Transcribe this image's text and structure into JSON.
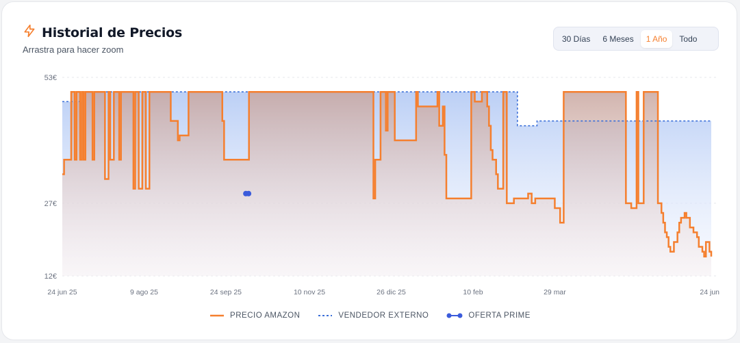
{
  "header": {
    "title": "Historial de Precios",
    "subtitle": "Arrastra para hacer zoom",
    "icon": "lightning-icon"
  },
  "ranges": [
    {
      "label": "30 Días",
      "active": false
    },
    {
      "label": "6 Meses",
      "active": false
    },
    {
      "label": "1 Año",
      "active": true
    },
    {
      "label": "Todo",
      "active": false
    }
  ],
  "colors": {
    "amazon": "#f57f2e",
    "third_party": "#3b6fd8",
    "prime": "#3b5bdb",
    "accent": "#f57f2e"
  },
  "chart_data": {
    "type": "line",
    "y_ticks": [
      {
        "value": 53,
        "label": "53€"
      },
      {
        "value": 27,
        "label": "27€"
      },
      {
        "value": 12,
        "label": "12€"
      }
    ],
    "ylim": [
      12,
      53
    ],
    "x_ticks": [
      {
        "day": 0,
        "label": "24 jun 25"
      },
      {
        "day": 46,
        "label": "9 ago 25"
      },
      {
        "day": 92,
        "label": "24 sep 25"
      },
      {
        "day": 139,
        "label": "10 nov 25"
      },
      {
        "day": 185,
        "label": "26 dic 25"
      },
      {
        "day": 231,
        "label": "10 feb"
      },
      {
        "day": 277,
        "label": "29 mar"
      },
      {
        "day": 365,
        "label": "24 jun"
      }
    ],
    "xlim": [
      0,
      365
    ],
    "series": [
      {
        "name": "PRECIO AMAZON",
        "style": "solid",
        "points": [
          [
            0,
            33
          ],
          [
            1,
            36
          ],
          [
            4,
            36
          ],
          [
            5,
            50
          ],
          [
            6,
            50
          ],
          [
            7,
            36
          ],
          [
            8,
            50
          ],
          [
            9,
            50
          ],
          [
            10,
            36
          ],
          [
            11,
            50
          ],
          [
            12,
            36
          ],
          [
            13,
            50
          ],
          [
            16,
            50
          ],
          [
            17,
            36
          ],
          [
            18,
            50
          ],
          [
            21,
            50
          ],
          [
            22,
            50
          ],
          [
            23,
            50
          ],
          [
            24,
            32
          ],
          [
            25,
            32
          ],
          [
            26,
            50
          ],
          [
            27,
            36
          ],
          [
            28,
            36
          ],
          [
            29,
            50
          ],
          [
            31,
            50
          ],
          [
            32,
            36
          ],
          [
            33,
            50
          ],
          [
            39,
            50
          ],
          [
            40,
            30
          ],
          [
            41,
            50
          ],
          [
            42,
            50
          ],
          [
            43,
            30
          ],
          [
            44,
            30
          ],
          [
            45,
            50
          ],
          [
            46,
            50
          ],
          [
            47,
            30
          ],
          [
            48,
            30
          ],
          [
            49,
            50
          ],
          [
            60,
            50
          ],
          [
            61,
            44
          ],
          [
            63,
            44
          ],
          [
            65,
            40
          ],
          [
            66,
            41
          ],
          [
            70,
            41
          ],
          [
            71,
            50
          ],
          [
            80,
            50
          ],
          [
            81,
            50
          ],
          [
            82,
            50
          ],
          [
            89,
            50
          ],
          [
            90,
            44
          ],
          [
            91,
            36
          ],
          [
            104,
            36
          ],
          [
            105,
            50
          ],
          [
            109,
            50
          ],
          [
            110,
            50
          ],
          [
            113,
            50
          ],
          [
            116,
            50
          ],
          [
            117,
            50
          ],
          [
            127,
            50
          ],
          [
            128,
            50
          ],
          [
            130,
            50
          ],
          [
            135,
            50
          ],
          [
            136,
            50
          ],
          [
            137,
            50
          ],
          [
            138,
            50
          ],
          [
            139,
            50
          ],
          [
            148,
            50
          ],
          [
            151,
            50
          ],
          [
            152,
            50
          ],
          [
            159,
            50
          ],
          [
            169,
            50
          ],
          [
            174,
            50
          ],
          [
            175,
            28
          ],
          [
            176,
            36
          ],
          [
            177,
            36
          ],
          [
            179,
            50
          ],
          [
            181,
            50
          ],
          [
            182,
            42
          ],
          [
            183,
            50
          ],
          [
            185,
            50
          ],
          [
            187,
            40
          ],
          [
            188,
            40
          ],
          [
            199,
            50
          ],
          [
            200,
            47
          ],
          [
            208,
            47
          ],
          [
            211,
            50
          ],
          [
            212,
            43
          ],
          [
            213,
            43
          ],
          [
            214,
            47
          ],
          [
            215,
            37
          ],
          [
            216,
            28
          ],
          [
            218,
            28
          ],
          [
            229,
            28
          ],
          [
            230,
            50
          ],
          [
            232,
            48
          ],
          [
            233,
            48
          ],
          [
            236,
            50
          ],
          [
            238,
            50
          ],
          [
            239,
            47
          ],
          [
            240,
            43
          ],
          [
            241,
            38
          ],
          [
            242,
            36
          ],
          [
            244,
            33
          ],
          [
            245,
            30
          ],
          [
            246,
            30
          ],
          [
            248,
            50
          ],
          [
            250,
            27
          ],
          [
            254,
            28
          ],
          [
            256,
            28
          ],
          [
            262,
            29
          ],
          [
            264,
            27
          ],
          [
            266,
            28
          ],
          [
            276,
            28
          ],
          [
            277,
            26
          ],
          [
            278,
            26
          ],
          [
            280,
            23
          ],
          [
            281,
            23
          ],
          [
            282,
            50
          ],
          [
            284,
            50
          ],
          [
            286,
            50
          ],
          [
            289,
            50
          ],
          [
            291,
            50
          ],
          [
            292,
            50
          ],
          [
            297,
            50
          ],
          [
            304,
            50
          ],
          [
            305,
            50
          ],
          [
            306,
            50
          ],
          [
            307,
            50
          ],
          [
            308,
            50
          ],
          [
            309,
            50
          ],
          [
            310,
            50
          ],
          [
            311,
            50
          ],
          [
            312,
            50
          ],
          [
            313,
            50
          ],
          [
            314,
            50
          ],
          [
            316,
            50
          ],
          [
            317,
            27
          ],
          [
            318,
            27
          ],
          [
            320,
            26
          ],
          [
            321,
            26
          ],
          [
            322,
            26
          ],
          [
            323,
            50
          ],
          [
            324,
            27
          ],
          [
            326,
            27
          ],
          [
            327,
            50
          ],
          [
            328,
            50
          ],
          [
            329,
            50
          ],
          [
            331,
            50
          ],
          [
            332,
            50
          ],
          [
            334,
            50
          ],
          [
            335,
            27
          ],
          [
            336,
            27
          ],
          [
            337,
            25
          ],
          [
            338,
            23
          ],
          [
            339,
            21
          ],
          [
            340,
            20
          ],
          [
            341,
            18
          ],
          [
            342,
            17
          ],
          [
            343,
            17
          ],
          [
            344,
            19
          ],
          [
            345,
            19
          ],
          [
            346,
            21
          ],
          [
            347,
            23
          ],
          [
            348,
            24
          ],
          [
            349,
            24
          ],
          [
            350,
            25
          ],
          [
            351,
            24
          ],
          [
            353,
            22
          ],
          [
            355,
            21
          ],
          [
            357,
            20
          ],
          [
            358,
            18
          ],
          [
            360,
            17
          ],
          [
            361,
            16
          ],
          [
            362,
            19
          ],
          [
            363,
            19
          ],
          [
            364,
            17
          ],
          [
            365,
            16
          ]
        ],
        "breaks": [
          28,
          50,
          102,
          190,
          227,
          282
        ]
      },
      {
        "name": "VENDEDOR EXTERNO",
        "style": "dashed",
        "points": [
          [
            0,
            48
          ],
          [
            10,
            48
          ],
          [
            12,
            50
          ],
          [
            255,
            50
          ],
          [
            256,
            43
          ],
          [
            265,
            43
          ],
          [
            267,
            44
          ],
          [
            365,
            44
          ]
        ]
      },
      {
        "name": "OFERTA PRIME",
        "style": "markers",
        "points": [
          [
            104,
            29
          ]
        ]
      }
    ],
    "legend": "bottom",
    "grid": true
  }
}
